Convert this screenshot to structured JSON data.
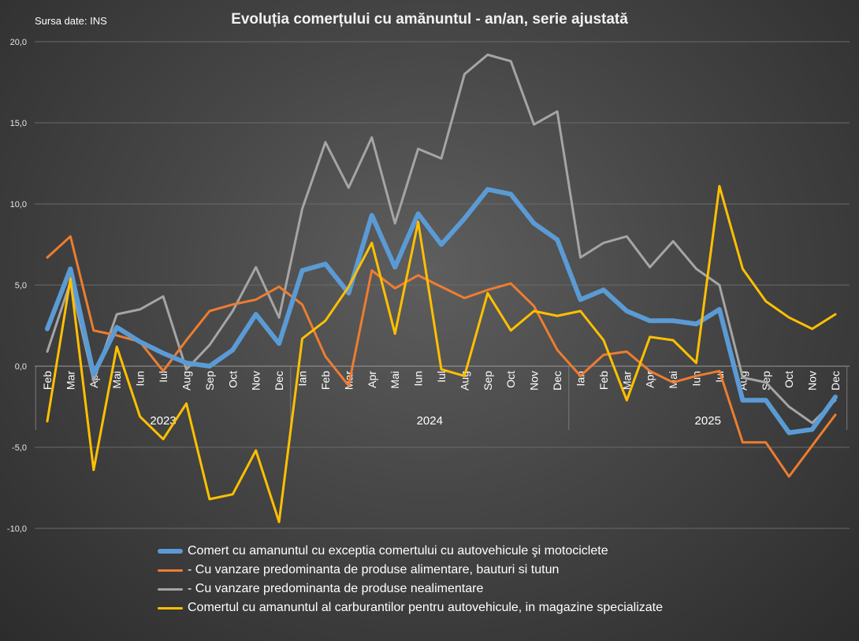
{
  "source_label": "Sursa date: INS",
  "chart_data": {
    "type": "line",
    "title": "Evoluția comerțului cu amănuntul - an/an, serie ajustată",
    "ylim": [
      -10,
      20
    ],
    "yticks": [
      "20,0",
      "15,0",
      "10,0",
      "5,0",
      "0,0",
      "-5,0",
      "-10,0"
    ],
    "ytick_values": [
      20,
      15,
      10,
      5,
      0,
      -5,
      -10
    ],
    "categories": [
      "Feb",
      "Mar",
      "Apr",
      "Mai",
      "Iun",
      "Iul",
      "Aug",
      "Sep",
      "Oct",
      "Nov",
      "Dec",
      "Ian",
      "Feb",
      "Mar",
      "Apr",
      "Mai",
      "Iun",
      "Iul",
      "Aug",
      "Sep",
      "Oct",
      "Nov",
      "Dec",
      "Ian",
      "Feb",
      "Mar",
      "Apr",
      "Mai",
      "Iun",
      "Iul",
      "Aug",
      "Sep",
      "Oct",
      "Nov",
      "Dec"
    ],
    "year_groups": [
      {
        "label": "2023",
        "count": 11
      },
      {
        "label": "2024",
        "count": 12
      },
      {
        "label": "2025",
        "count": 12
      }
    ],
    "series": [
      {
        "name": "Comert cu amanuntul cu exceptia comertului cu autovehicule şi motociclete",
        "color": "#5b9bd5",
        "width": 6,
        "values": [
          2.3,
          6.0,
          -0.5,
          2.4,
          1.5,
          0.8,
          0.2,
          0.0,
          1.0,
          3.2,
          1.4,
          5.9,
          6.3,
          4.5,
          9.3,
          6.1,
          9.4,
          7.5,
          9.1,
          10.9,
          10.6,
          8.8,
          7.8,
          4.1,
          4.7,
          3.4,
          2.8,
          2.8,
          2.6,
          3.5,
          -2.1,
          -2.1,
          -4.1,
          -3.9,
          -1.9
        ]
      },
      {
        "name": " - Cu vanzare predominanta de produse alimentare, bauturi si tutun",
        "color": "#ed7d31",
        "width": 3,
        "values": [
          6.7,
          8.0,
          2.2,
          1.9,
          1.5,
          -0.3,
          1.6,
          3.4,
          3.8,
          4.1,
          4.9,
          3.8,
          0.6,
          -1.2,
          5.9,
          4.8,
          5.6,
          4.9,
          4.2,
          4.7,
          5.1,
          3.7,
          1.0,
          -0.6,
          0.7,
          0.9,
          -0.3,
          -1.0,
          -0.6,
          -0.3,
          -4.7,
          -4.7,
          -6.8,
          -4.9,
          -3.0
        ]
      },
      {
        "name": " - Cu vanzare predominanta de produse nealimentare",
        "color": "#a5a5a5",
        "width": 3,
        "values": [
          0.9,
          5.2,
          -0.9,
          3.2,
          3.5,
          4.3,
          -0.2,
          1.3,
          3.4,
          6.1,
          3.0,
          9.7,
          13.8,
          11.0,
          14.1,
          8.8,
          13.4,
          12.8,
          18.0,
          19.2,
          18.8,
          14.9,
          15.7,
          6.7,
          7.6,
          8.0,
          6.1,
          7.7,
          6.0,
          5.0,
          -0.7,
          -1.0,
          -2.5,
          -3.5,
          -2.1
        ]
      },
      {
        "name": "Comertul cu amanuntul al carburantilor pentru autovehicule, in magazine specializate",
        "color": "#ffc000",
        "width": 3,
        "values": [
          -3.4,
          5.4,
          -6.4,
          1.2,
          -3.1,
          -4.5,
          -2.3,
          -8.2,
          -7.9,
          -5.2,
          -9.6,
          1.7,
          2.8,
          4.9,
          7.6,
          2.0,
          8.9,
          -0.2,
          -0.6,
          4.5,
          2.2,
          3.4,
          3.1,
          3.4,
          1.6,
          -2.1,
          1.8,
          1.6,
          0.2,
          11.1,
          6.0,
          4.0,
          3.0,
          2.3,
          3.2
        ]
      }
    ]
  }
}
